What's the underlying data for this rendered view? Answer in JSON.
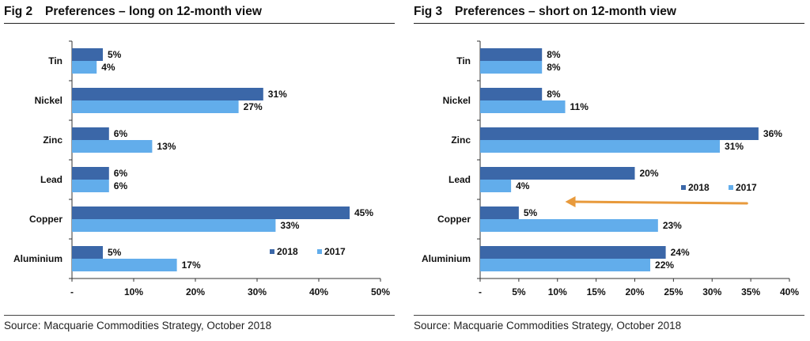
{
  "colors": {
    "series_2018": "#3b67a8",
    "series_2017": "#62adeb",
    "arrow": "#e89a3c",
    "axis": "#333333"
  },
  "charts": [
    {
      "fig_label": "Fig 2",
      "title": "Preferences – long on 12-month view",
      "source": "Source: Macquarie Commodities Strategy, October 2018"
    },
    {
      "fig_label": "Fig 3",
      "title": "Preferences – short on 12-month view",
      "source": "Source: Macquarie Commodities Strategy, October 2018"
    }
  ],
  "chart_data": [
    {
      "type": "bar",
      "orientation": "horizontal",
      "title": "Preferences – long on 12-month view",
      "categories": [
        "Tin",
        "Nickel",
        "Zinc",
        "Lead",
        "Copper",
        "Aluminium"
      ],
      "series": [
        {
          "name": "2018",
          "values": [
            5,
            31,
            6,
            6,
            45,
            5
          ],
          "labels": [
            "5%",
            "31%",
            "6%",
            "6%",
            "45%",
            "5%"
          ]
        },
        {
          "name": "2017",
          "values": [
            4,
            27,
            13,
            6,
            33,
            17
          ],
          "labels": [
            "4%",
            "27%",
            "13%",
            "6%",
            "33%",
            "17%"
          ]
        }
      ],
      "xlim": [
        0,
        50
      ],
      "xticks": [
        0,
        10,
        20,
        30,
        40,
        50
      ],
      "xtick_labels": [
        "-",
        "10%",
        "20%",
        "30%",
        "40%",
        "50%"
      ],
      "legend": "bottom-right",
      "grid": false
    },
    {
      "type": "bar",
      "orientation": "horizontal",
      "title": "Preferences – short on 12-month view",
      "categories": [
        "Tin",
        "Nickel",
        "Zinc",
        "Lead",
        "Copper",
        "Aluminium"
      ],
      "series": [
        {
          "name": "2018",
          "values": [
            8,
            8,
            36,
            20,
            5,
            24
          ],
          "labels": [
            "8%",
            "8%",
            "36%",
            "20%",
            "5%",
            "24%"
          ]
        },
        {
          "name": "2017",
          "values": [
            8,
            11,
            31,
            4,
            23,
            22
          ],
          "labels": [
            "8%",
            "11%",
            "31%",
            "4%",
            "23%",
            "22%"
          ]
        }
      ],
      "xlim": [
        0,
        40
      ],
      "xticks": [
        0,
        5,
        10,
        15,
        20,
        25,
        30,
        35,
        40
      ],
      "xtick_labels": [
        "-",
        "5%",
        "10%",
        "15%",
        "20%",
        "25%",
        "30%",
        "35%",
        "40%"
      ],
      "legend": "right",
      "grid": false,
      "annotation": {
        "type": "arrow",
        "from_value": 34.5,
        "to_value": 11,
        "category": "Copper"
      }
    }
  ]
}
